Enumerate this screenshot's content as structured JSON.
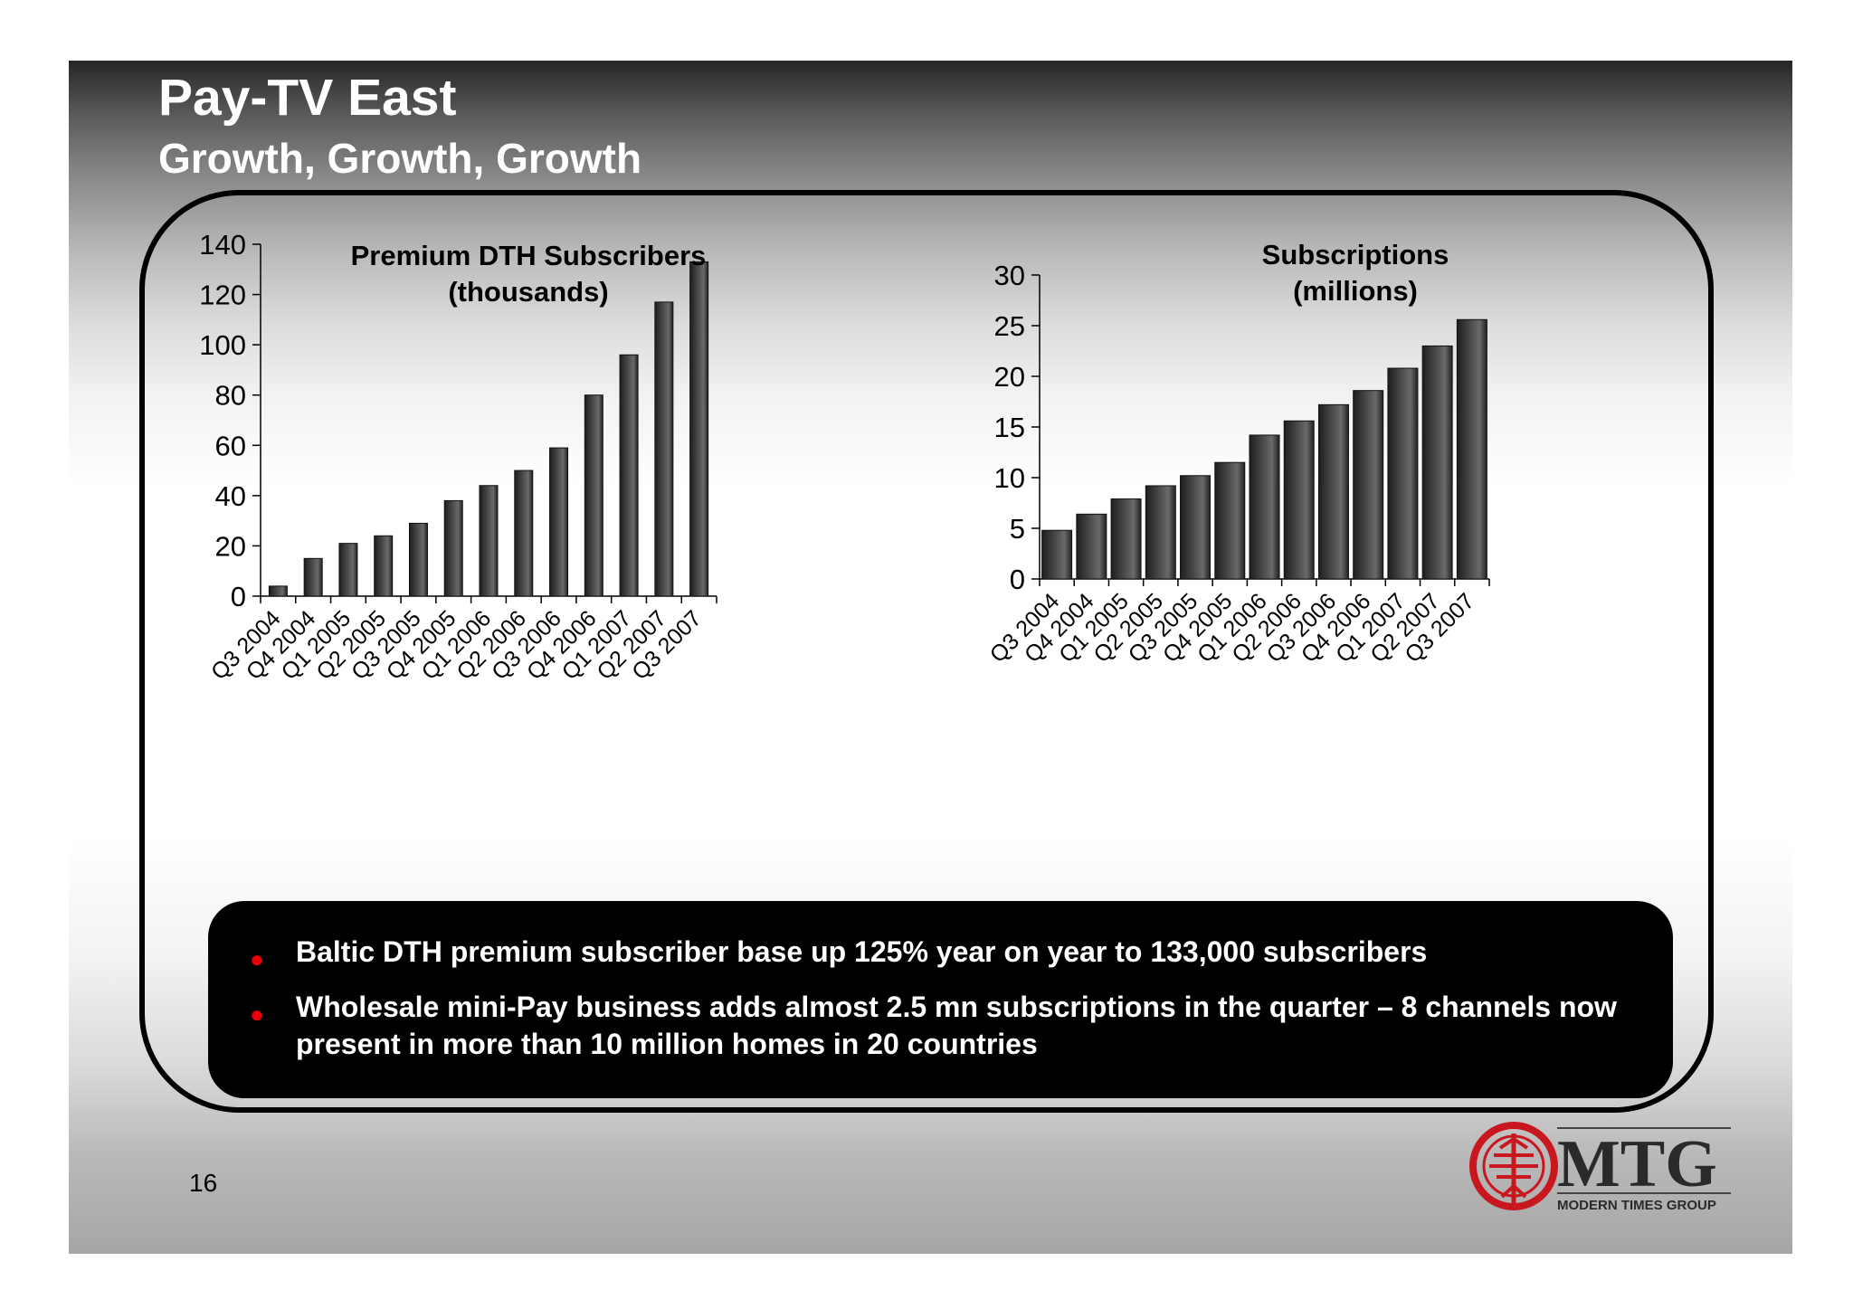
{
  "slide": {
    "title": "Pay-TV East",
    "subtitle": "Growth, Growth, Growth",
    "page_number": "16"
  },
  "callout": {
    "bullets": [
      "Baltic DTH premium subscriber base up 125% year on year to 133,000 subscribers",
      "Wholesale mini-Pay business adds almost  2.5 mn subscriptions in the quarter – 8 channels now present in more than 10 million homes in 20 countries"
    ]
  },
  "logo": {
    "wordmark": "MTG",
    "tagline": "MODERN TIMES GROUP"
  },
  "colors": {
    "bullet": "#e8000b",
    "logo_red": "#c8171e",
    "bar": "#4a4a4a"
  },
  "chart_data": [
    {
      "type": "bar",
      "title": "Premium DTH Subscribers\n(thousands)",
      "categories": [
        "Q3 2004",
        "Q4 2004",
        "Q1 2005",
        "Q2 2005",
        "Q3 2005",
        "Q4 2005",
        "Q1 2006",
        "Q2 2006",
        "Q3 2006",
        "Q4 2006",
        "Q1 2007",
        "Q2 2007",
        "Q3 2007"
      ],
      "values": [
        4,
        15,
        21,
        24,
        29,
        38,
        44,
        50,
        59,
        80,
        96,
        117,
        133
      ],
      "ylim": [
        0,
        140
      ],
      "yticks": [
        0,
        20,
        40,
        60,
        80,
        100,
        120,
        140
      ],
      "xlabel": "",
      "ylabel": "",
      "grid": false,
      "legend": "none"
    },
    {
      "type": "bar",
      "title": "Subscriptions\n(millions)",
      "categories": [
        "Q3 2004",
        "Q4 2004",
        "Q1 2005",
        "Q2 2005",
        "Q3 2005",
        "Q4 2005",
        "Q1 2006",
        "Q2 2006",
        "Q3 2006",
        "Q4 2006",
        "Q1 2007",
        "Q2 2007",
        "Q3 2007"
      ],
      "values": [
        4.8,
        6.4,
        7.9,
        9.2,
        10.2,
        11.5,
        14.2,
        15.6,
        17.2,
        18.6,
        20.8,
        23.0,
        25.6
      ],
      "ylim": [
        0,
        30
      ],
      "yticks": [
        0,
        5,
        10,
        15,
        20,
        25,
        30
      ],
      "xlabel": "",
      "ylabel": "",
      "grid": false,
      "legend": "none"
    }
  ]
}
